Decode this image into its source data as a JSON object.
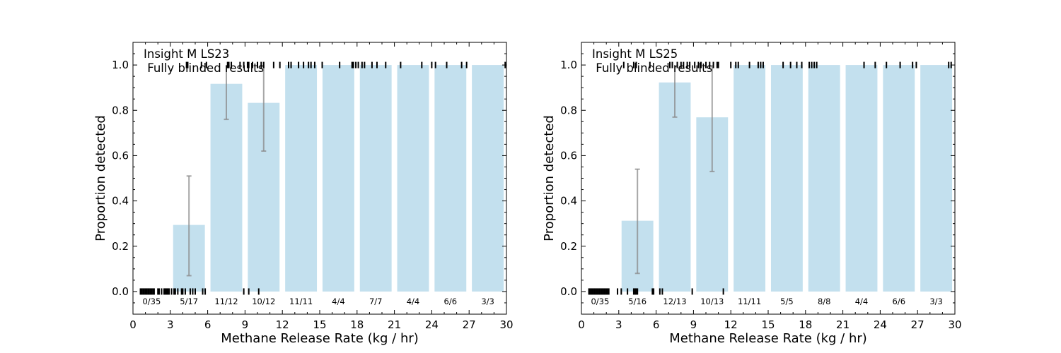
{
  "chart_data": [
    {
      "type": "bar",
      "title_line1": "Insight M LS23",
      "title_line2": " Fully blinded results",
      "xlabel": "Methane Release Rate (kg / hr)",
      "ylabel": "Proportion detected",
      "xlim": [
        0,
        30
      ],
      "ylim": [
        -0.1,
        1.1
      ],
      "xticks": [
        0,
        3,
        6,
        9,
        12,
        15,
        18,
        21,
        24,
        27,
        30
      ],
      "yticks": [
        0.0,
        0.2,
        0.4,
        0.6,
        0.8,
        1.0
      ],
      "bar_color": "#c3e0ee",
      "bins": [
        {
          "lo": 0,
          "hi": 3,
          "value": 0.0,
          "label": "0/35",
          "err": null
        },
        {
          "lo": 3,
          "hi": 6,
          "value": 0.294,
          "label": "5/17",
          "err": [
            0.07,
            0.51
          ]
        },
        {
          "lo": 6,
          "hi": 9,
          "value": 0.917,
          "label": "11/12",
          "err": [
            0.76,
            1.0
          ]
        },
        {
          "lo": 9,
          "hi": 12,
          "value": 0.833,
          "label": "10/12",
          "err": [
            0.62,
            1.0
          ]
        },
        {
          "lo": 12,
          "hi": 15,
          "value": 1.0,
          "label": "11/11",
          "err": null
        },
        {
          "lo": 15,
          "hi": 18,
          "value": 1.0,
          "label": "4/4",
          "err": null
        },
        {
          "lo": 18,
          "hi": 21,
          "value": 1.0,
          "label": "7/7",
          "err": null
        },
        {
          "lo": 21,
          "hi": 24,
          "value": 1.0,
          "label": "4/4",
          "err": null
        },
        {
          "lo": 24,
          "hi": 27,
          "value": 1.0,
          "label": "6/6",
          "err": null
        },
        {
          "lo": 27,
          "hi": 30,
          "value": 1.0,
          "label": "3/3",
          "err": null
        }
      ],
      "detected_rates": [
        4.3,
        4.4,
        5.5,
        5.9,
        7.6,
        7.7,
        7.9,
        8.6,
        8.9,
        9.2,
        9.3,
        9.6,
        10.0,
        10.3,
        10.5,
        11.3,
        11.8,
        12.5,
        12.7,
        13.3,
        13.7,
        14.1,
        14.3,
        14.6,
        15.2,
        16.6,
        17.6,
        17.7,
        17.9,
        18.1,
        18.4,
        18.6,
        19.2,
        19.6,
        20.3,
        21.5,
        23.2,
        24.0,
        24.3,
        25.2,
        26.4,
        26.8,
        29.9
      ],
      "missed_rates": [
        0.6,
        0.7,
        0.8,
        0.9,
        1.0,
        1.1,
        1.2,
        1.3,
        1.4,
        1.5,
        1.6,
        1.7,
        2.0,
        2.1,
        2.3,
        2.5,
        2.6,
        2.7,
        2.8,
        2.9,
        3.1,
        3.3,
        3.4,
        3.6,
        3.9,
        4.0,
        4.2,
        4.6,
        4.8,
        5.0,
        5.6,
        5.8,
        8.9,
        9.3,
        10.1
      ]
    },
    {
      "type": "bar",
      "title_line1": "Insight M LS25",
      "title_line2": " Fully blinded results",
      "xlabel": "Methane Release Rate (kg / hr)",
      "ylabel": "Proportion detected",
      "xlim": [
        0,
        30
      ],
      "ylim": [
        -0.1,
        1.1
      ],
      "xticks": [
        0,
        3,
        6,
        9,
        12,
        15,
        18,
        21,
        24,
        27,
        30
      ],
      "yticks": [
        0.0,
        0.2,
        0.4,
        0.6,
        0.8,
        1.0
      ],
      "bar_color": "#c3e0ee",
      "bins": [
        {
          "lo": 0,
          "hi": 3,
          "value": 0.0,
          "label": "0/35",
          "err": null
        },
        {
          "lo": 3,
          "hi": 6,
          "value": 0.3125,
          "label": "5/16",
          "err": [
            0.08,
            0.54
          ]
        },
        {
          "lo": 6,
          "hi": 9,
          "value": 0.923,
          "label": "12/13",
          "err": [
            0.77,
            1.0
          ]
        },
        {
          "lo": 9,
          "hi": 12,
          "value": 0.769,
          "label": "10/13",
          "err": [
            0.53,
            1.0
          ]
        },
        {
          "lo": 12,
          "hi": 15,
          "value": 1.0,
          "label": "11/11",
          "err": null
        },
        {
          "lo": 15,
          "hi": 18,
          "value": 1.0,
          "label": "5/5",
          "err": null
        },
        {
          "lo": 18,
          "hi": 21,
          "value": 1.0,
          "label": "8/8",
          "err": null
        },
        {
          "lo": 21,
          "hi": 24,
          "value": 1.0,
          "label": "4/4",
          "err": null
        },
        {
          "lo": 24,
          "hi": 27,
          "value": 1.0,
          "label": "6/6",
          "err": null
        },
        {
          "lo": 27,
          "hi": 30,
          "value": 1.0,
          "label": "3/3",
          "err": null
        }
      ],
      "detected_rates": [
        3.4,
        4.2,
        4.4,
        5.5,
        7.1,
        7.3,
        7.7,
        8.0,
        8.2,
        8.5,
        8.7,
        9.1,
        9.4,
        9.6,
        10.0,
        10.3,
        10.6,
        10.9,
        11.0,
        12.0,
        12.4,
        12.6,
        13.5,
        14.2,
        14.4,
        14.6,
        16.2,
        16.8,
        17.3,
        17.7,
        18.3,
        18.5,
        18.7,
        18.9,
        22.7,
        23.6,
        24.5,
        25.6,
        26.6,
        26.9,
        29.5,
        29.7
      ],
      "missed_rates": [
        0.6,
        0.7,
        0.8,
        0.9,
        1.0,
        1.1,
        1.2,
        1.3,
        1.4,
        1.5,
        1.6,
        1.7,
        1.8,
        1.9,
        2.0,
        2.1,
        2.2,
        2.9,
        3.2,
        3.7,
        4.2,
        4.3,
        4.4,
        4.5,
        5.7,
        5.8,
        6.3,
        6.5,
        8.9,
        11.4
      ]
    }
  ]
}
